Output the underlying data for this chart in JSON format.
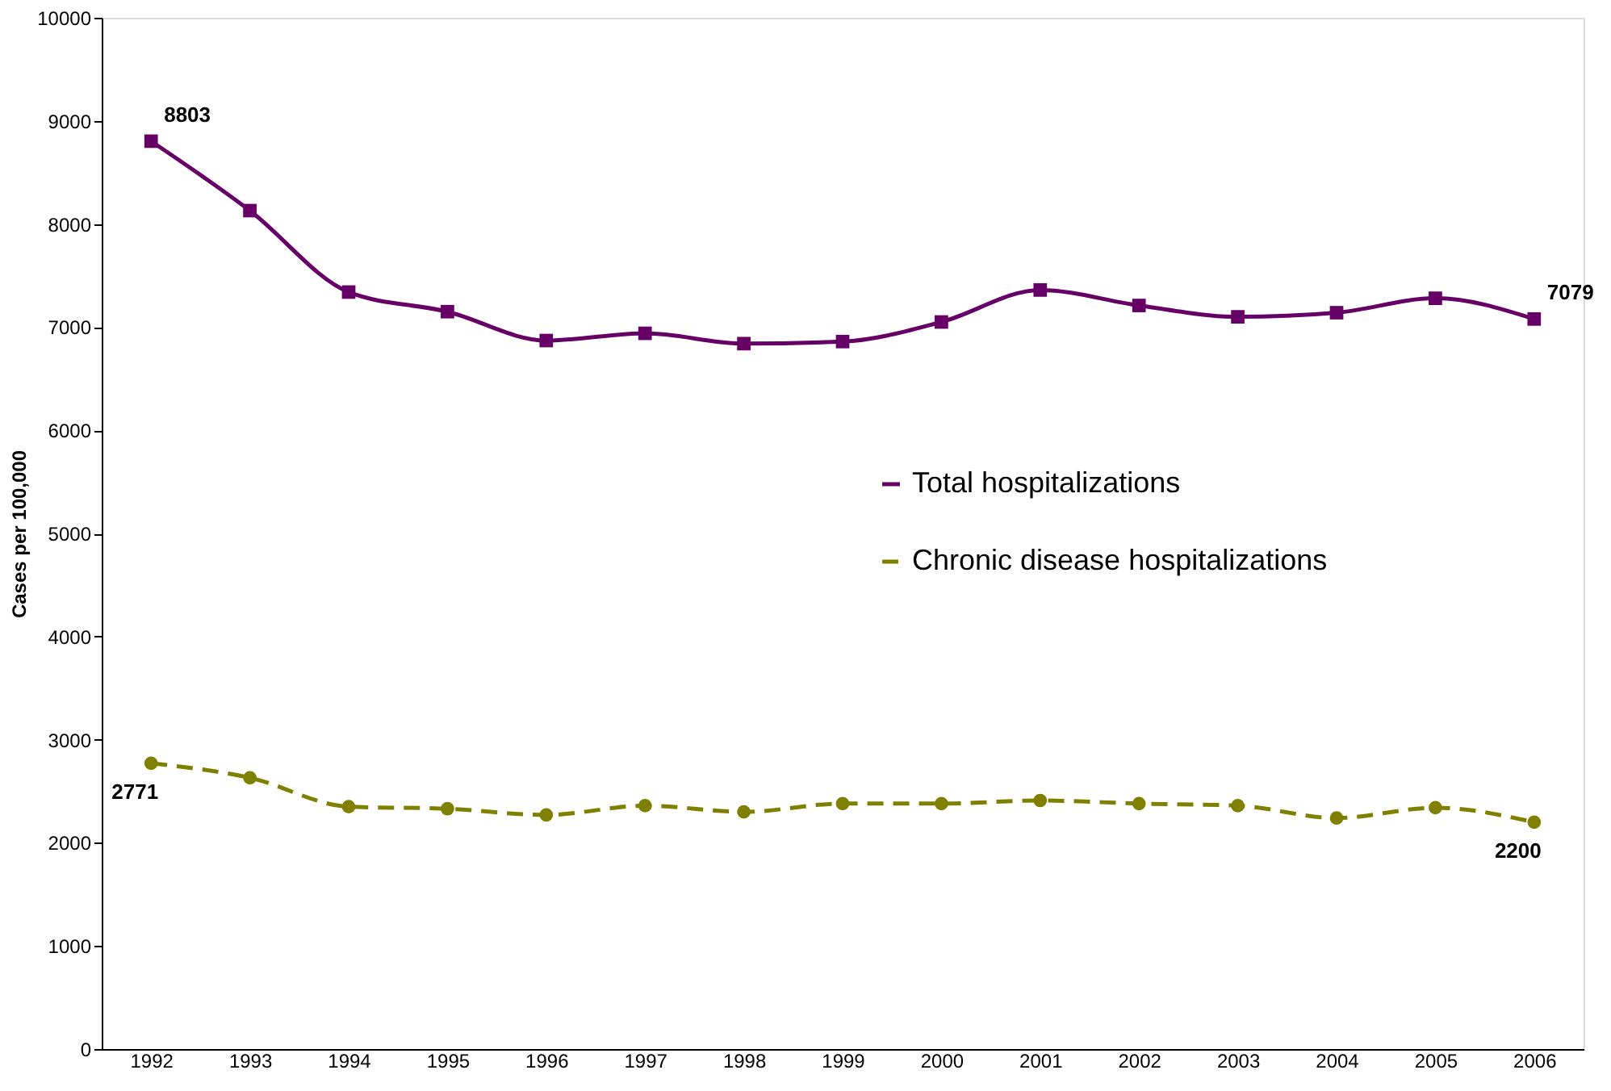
{
  "chart_data": {
    "type": "line",
    "ylabel": "Cases per 100,000",
    "categories": [
      "1992",
      "1993",
      "1994",
      "1995",
      "1996",
      "1997",
      "1998",
      "1999",
      "2000",
      "2001",
      "2002",
      "2003",
      "2004",
      "2005",
      "2006"
    ],
    "series": [
      {
        "name": "Total hospitalizations",
        "color": "#660066",
        "marker": "square",
        "line_style": "solid",
        "values": [
          8803,
          8130,
          7340,
          7150,
          6870,
          6940,
          6840,
          6860,
          7050,
          7360,
          7210,
          7100,
          7140,
          7280,
          7079
        ],
        "value_labels": [
          "8803",
          null,
          null,
          null,
          null,
          null,
          null,
          null,
          null,
          null,
          null,
          null,
          null,
          null,
          "7079"
        ]
      },
      {
        "name": "Chronic disease hospitalizations",
        "color": "#808000",
        "marker": "circle",
        "line_style": "dashed",
        "values": [
          2771,
          2630,
          2350,
          2330,
          2270,
          2360,
          2300,
          2380,
          2380,
          2410,
          2380,
          2360,
          2240,
          2340,
          2200
        ],
        "value_labels": [
          "2771",
          null,
          null,
          null,
          null,
          null,
          null,
          null,
          null,
          null,
          null,
          null,
          null,
          null,
          "2200"
        ]
      }
    ],
    "ylim": [
      0,
      10000
    ],
    "yticks": [
      0,
      1000,
      2000,
      3000,
      4000,
      5000,
      6000,
      7000,
      8000,
      9000,
      10000
    ],
    "grid": false,
    "legend": "right"
  }
}
